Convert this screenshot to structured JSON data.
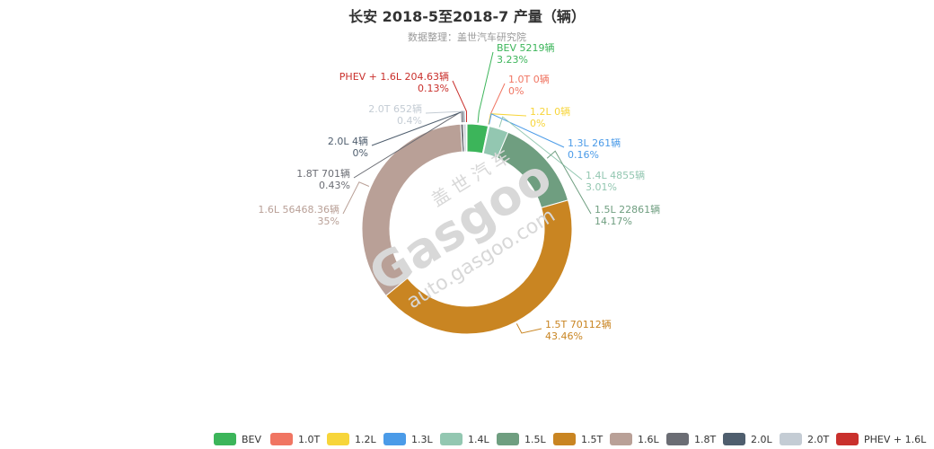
{
  "chart_data": {
    "type": "pie",
    "title": "长安 2018-5至2018-7 产量（辆）",
    "subtitle": "数据整理：盖世汽车研究院",
    "unit": "辆",
    "slices": [
      {
        "name": "BEV",
        "value": 5219,
        "value_label": "5219",
        "percent": "3.23%",
        "color": "#3cb55a"
      },
      {
        "name": "1.0T",
        "value": 0,
        "value_label": "0",
        "percent": "0%",
        "color": "#f07562"
      },
      {
        "name": "1.2L",
        "value": 0,
        "value_label": "0",
        "percent": "0%",
        "color": "#f7d53a"
      },
      {
        "name": "1.3L",
        "value": 261,
        "value_label": "261",
        "percent": "0.16%",
        "color": "#4b9be8"
      },
      {
        "name": "1.4L",
        "value": 4855,
        "value_label": "4855",
        "percent": "3.01%",
        "color": "#93c7b1"
      },
      {
        "name": "1.5L",
        "value": 22861,
        "value_label": "22861",
        "percent": "14.17%",
        "color": "#6f9e80"
      },
      {
        "name": "1.5T",
        "value": 70112,
        "value_label": "70112",
        "percent": "43.46%",
        "color": "#c98522"
      },
      {
        "name": "1.6L",
        "value": 56468.36,
        "value_label": "56468.36",
        "percent": "35%",
        "color": "#b9a097"
      },
      {
        "name": "1.8T",
        "value": 701,
        "value_label": "701",
        "percent": "0.43%",
        "color": "#6b6d74"
      },
      {
        "name": "2.0L",
        "value": 4,
        "value_label": "4",
        "percent": "0%",
        "color": "#4f5e6e"
      },
      {
        "name": "2.0T",
        "value": 652,
        "value_label": "652",
        "percent": "0.4%",
        "color": "#c4ccd4"
      },
      {
        "name": "PHEV + 1.6L",
        "value": 204.63,
        "value_label": "204.63",
        "percent": "0.13%",
        "color": "#c9302c"
      }
    ],
    "watermark": {
      "cn": "盖 世 汽 车",
      "brand": "Gasgoo",
      "url": "auto.gasgoo.com"
    }
  }
}
